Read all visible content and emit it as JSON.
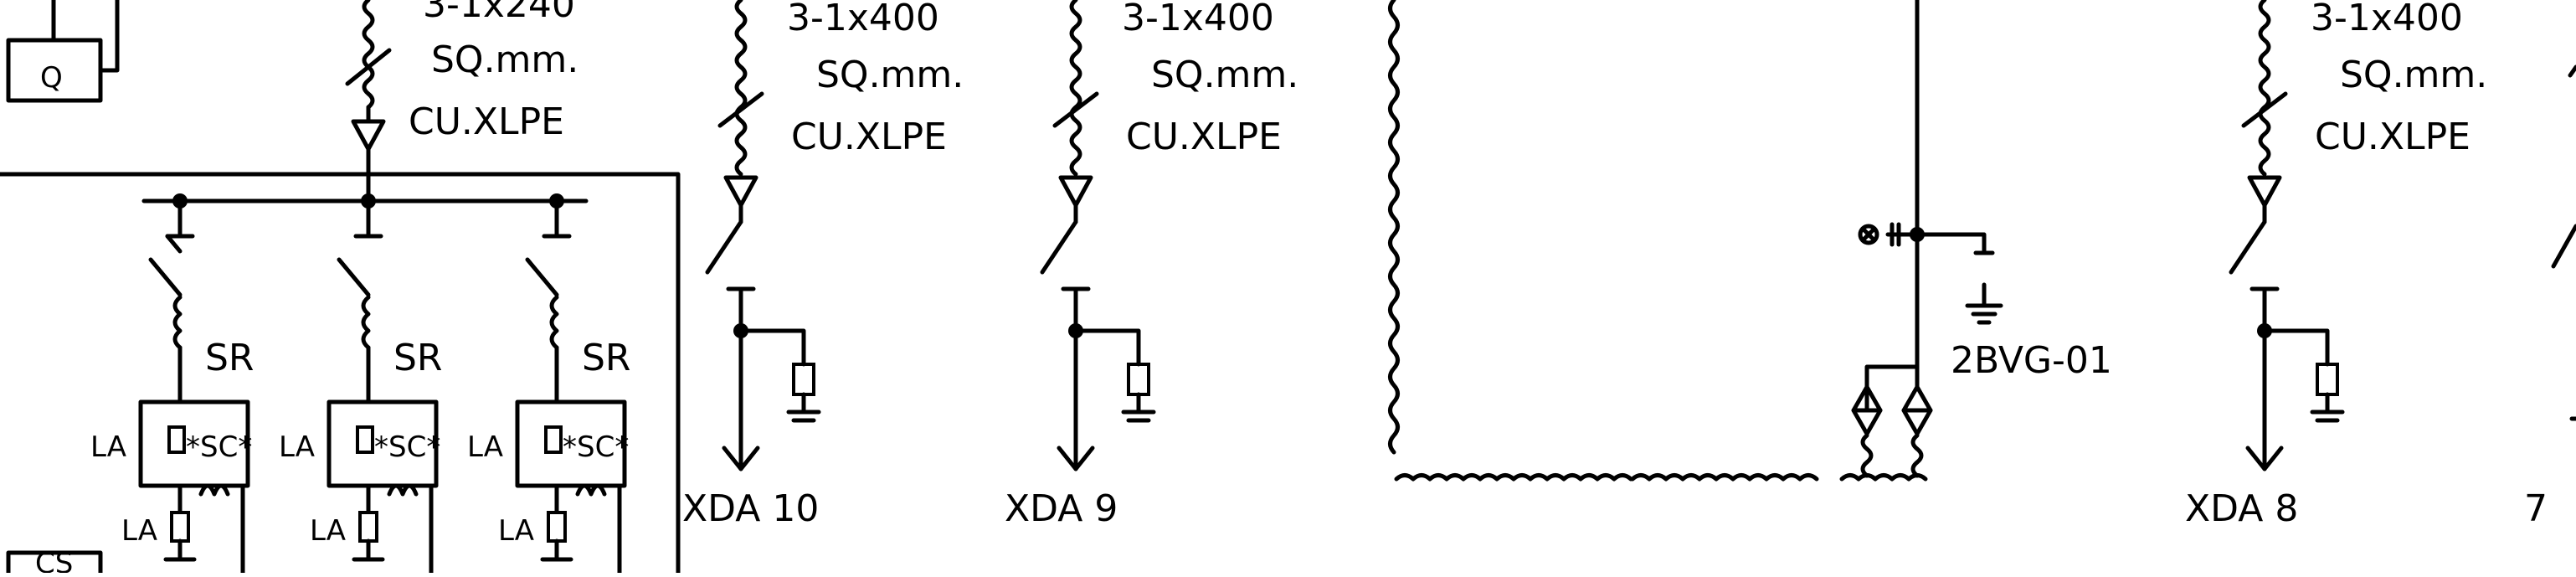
{
  "cable_spec": {
    "size_left": "3-1x240",
    "size": "3-1x400",
    "unit": "SQ.mm.",
    "insulation": "CU.XLPE"
  },
  "feeders": [
    {
      "label": "XDA 10"
    },
    {
      "label": "XDA 9"
    },
    {
      "label": "XDA 8"
    },
    {
      "label": "7"
    }
  ],
  "bank": {
    "reactor_label": "SR",
    "capacitor_label": "*SC*",
    "arrester_label": "LA"
  },
  "vt_label": "2BVG-01",
  "box_label_top": "Q",
  "box_label_bottom": "CS"
}
